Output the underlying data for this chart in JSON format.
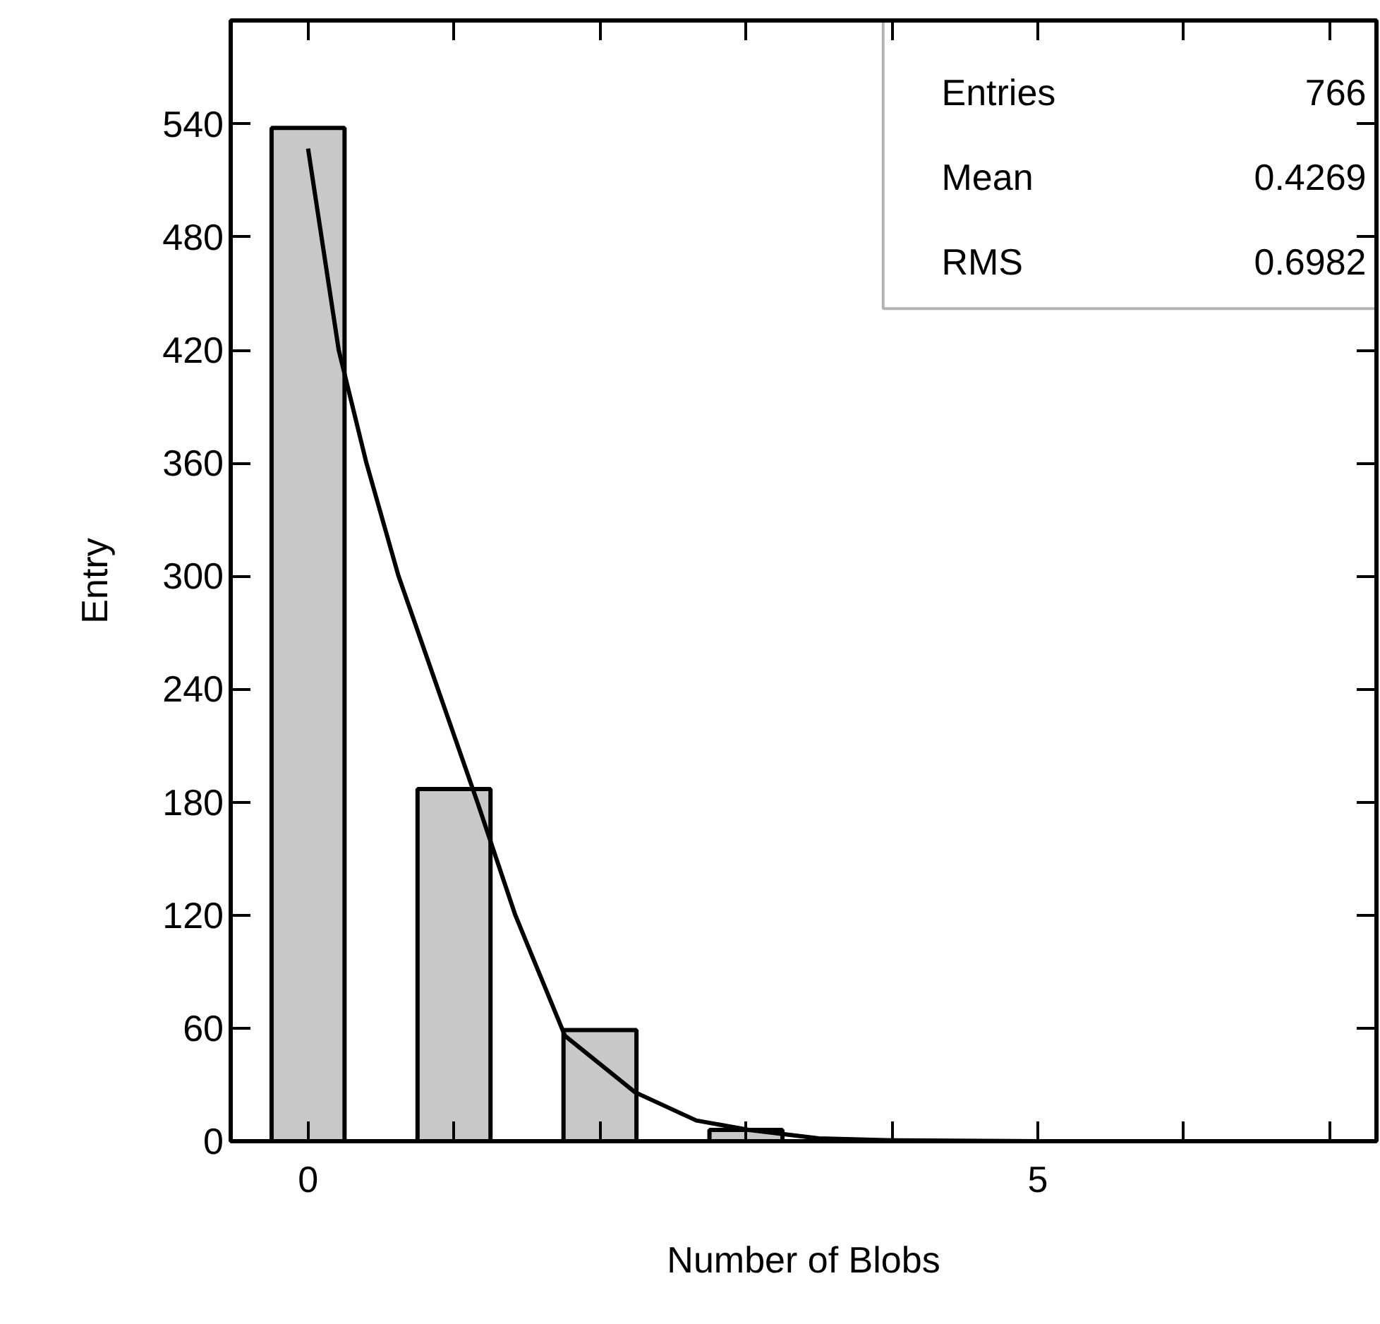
{
  "chart_data": {
    "type": "bar",
    "xlabel": "Number of Blobs",
    "ylabel": "Entry",
    "x": [
      0,
      1,
      2,
      3
    ],
    "series": [
      {
        "color": "#c8c8c8",
        "values": [
          538,
          187,
          59,
          6
        ]
      },
      {
        "type": "line",
        "color": "#000000",
        "x": [
          0,
          0.21,
          0.4,
          0.62,
          0.89,
          1.16,
          1.42,
          1.76,
          2.24,
          2.66,
          3.02,
          3.5,
          4.0,
          5.0,
          6.0,
          7.3
        ],
        "values": [
          527,
          420,
          360,
          300,
          240,
          180,
          120,
          56,
          26,
          11,
          6,
          1.5,
          0.5,
          0,
          0,
          0
        ]
      }
    ],
    "xlim": [
      -0.53,
      7.32
    ],
    "ylim": [
      0,
      595
    ],
    "xticks": [
      0,
      {
        "value": 1,
        "label": null
      },
      {
        "value": 2,
        "label": null
      },
      {
        "value": 3,
        "label": null
      },
      {
        "value": 4,
        "label": null
      },
      5,
      {
        "value": 6,
        "label": null
      },
      {
        "value": 7,
        "label": null
      }
    ],
    "yticks": [
      0,
      60,
      120,
      180,
      240,
      300,
      360,
      420,
      480,
      540
    ],
    "annotations": [
      "Entries 766",
      "Mean 0.4269",
      "RMS 0.6982"
    ],
    "grid": false,
    "line_style": "solid",
    "marker": "none"
  }
}
